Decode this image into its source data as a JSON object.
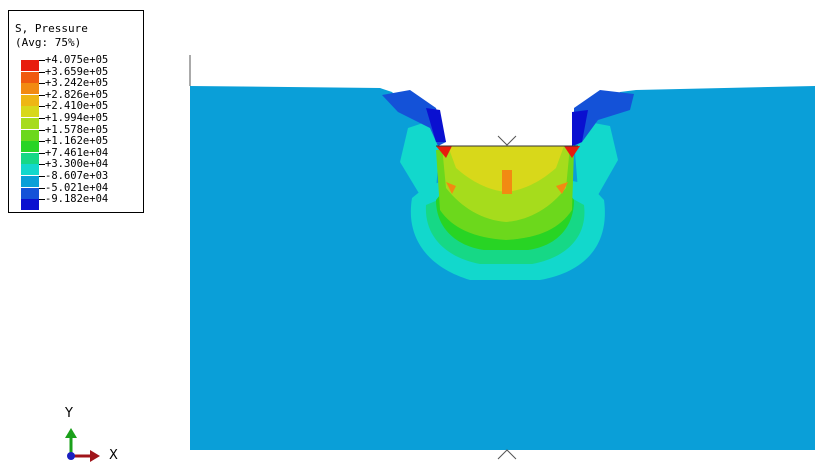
{
  "legend": {
    "title": "S, Pressure",
    "subtitle": "(Avg: 75%)",
    "entries": [
      {
        "label": "+4.075e+05",
        "color": "#e81c0e"
      },
      {
        "label": "+3.659e+05",
        "color": "#f05a10"
      },
      {
        "label": "+3.242e+05",
        "color": "#f28a12"
      },
      {
        "label": "+2.826e+05",
        "color": "#eeb614"
      },
      {
        "label": "+2.410e+05",
        "color": "#d8d81a"
      },
      {
        "label": "+1.994e+05",
        "color": "#a6dc1c"
      },
      {
        "label": "+1.578e+05",
        "color": "#6cd81c"
      },
      {
        "label": "+1.162e+05",
        "color": "#28d424"
      },
      {
        "label": "+7.461e+04",
        "color": "#16d886"
      },
      {
        "label": "+3.300e+04",
        "color": "#12d8cc"
      },
      {
        "label": "-8.607e+03",
        "color": "#0a9fd8"
      },
      {
        "label": "-5.021e+04",
        "color": "#1452d8"
      },
      {
        "label": "-9.182e+04",
        "color": "#0a10d0"
      }
    ]
  },
  "triad": {
    "y_label": "Y",
    "x_label": "X"
  },
  "colors": {
    "background_field": "#0a9fd8",
    "cyan": "#12d8cc",
    "teal": "#16d886",
    "green": "#28d424",
    "lightgreen": "#6cd81c",
    "yellowgreen": "#a6dc1c",
    "yellow": "#d8d81a",
    "orange": "#f28a12",
    "red": "#e81c0e",
    "blue": "#1452d8",
    "darkblue": "#0a10d0"
  }
}
